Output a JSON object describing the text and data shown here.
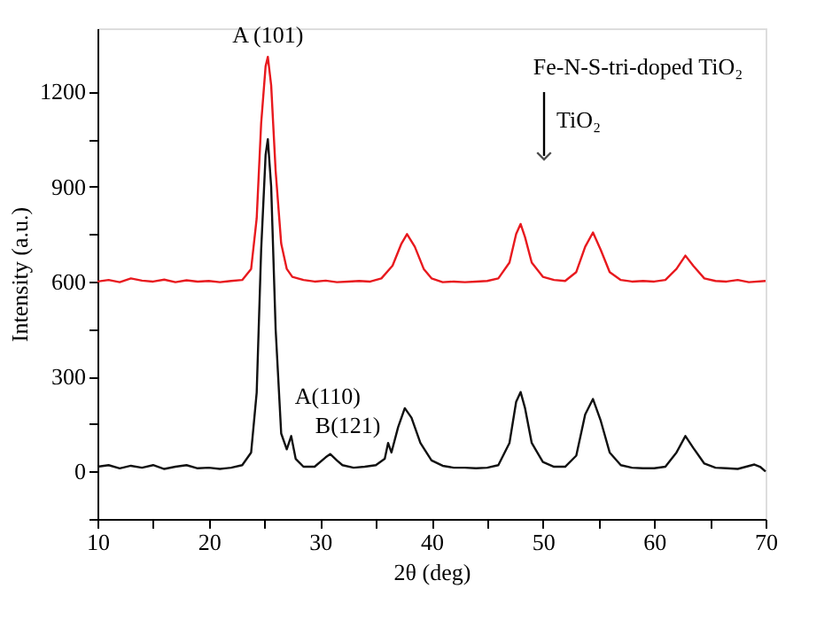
{
  "chart_data": {
    "type": "line",
    "xlabel": "2θ (deg)",
    "ylabel": "Intensity (a.u.)",
    "xlim": [
      10,
      70
    ],
    "ylim": [
      -150,
      1400
    ],
    "xticks": [
      10,
      {
        "value": 15,
        "label": null
      },
      20,
      {
        "value": 25,
        "label": null
      },
      30,
      {
        "value": 35,
        "label": null
      },
      40,
      {
        "value": 45,
        "label": null
      },
      50,
      {
        "value": 55,
        "label": null
      },
      60,
      {
        "value": 65,
        "label": null
      },
      70
    ],
    "yticks": [
      {
        "value": -150,
        "label": null
      },
      0,
      {
        "value": 150,
        "label": null
      },
      300,
      {
        "value": 450,
        "label": null
      },
      600,
      {
        "value": 750,
        "label": null
      },
      900,
      {
        "value": 1050,
        "label": null
      },
      1200
    ],
    "grid": false,
    "marker": "none",
    "line_style": "solid",
    "series": [
      {
        "color": "#e8191e",
        "x": [
          10,
          11,
          12,
          13,
          14,
          15,
          16,
          17,
          18,
          19,
          20,
          21,
          22,
          23,
          23.8,
          24.3,
          24.7,
          25.1,
          25.3,
          25.6,
          26,
          26.5,
          27,
          27.5,
          28.5,
          29.5,
          30.5,
          31.5,
          32.5,
          33.5,
          34.5,
          35.5,
          36.5,
          37.3,
          37.8,
          38.5,
          39.3,
          40,
          41,
          42,
          43,
          44,
          45,
          46,
          47,
          47.6,
          48,
          48.4,
          49,
          50,
          51,
          52,
          53,
          53.8,
          54.5,
          55.2,
          56,
          57,
          58,
          59,
          60,
          61,
          62,
          62.8,
          63.5,
          64.5,
          65.5,
          66.5,
          67.5,
          68.5,
          70
        ],
        "values": [
          600,
          605,
          598,
          610,
          603,
          600,
          606,
          598,
          604,
          600,
          602,
          598,
          602,
          605,
          640,
          800,
          1100,
          1280,
          1310,
          1220,
          950,
          720,
          640,
          615,
          605,
          600,
          603,
          598,
          600,
          602,
          600,
          610,
          650,
          720,
          750,
          710,
          640,
          610,
          598,
          600,
          598,
          600,
          602,
          610,
          660,
          750,
          782,
          740,
          660,
          615,
          605,
          602,
          630,
          710,
          755,
          700,
          630,
          605,
          600,
          602,
          600,
          605,
          640,
          682,
          650,
          610,
          602,
          600,
          605,
          598,
          602
        ]
      },
      {
        "color": "#111111",
        "x": [
          10,
          11,
          12,
          13,
          14,
          15,
          16,
          17,
          18,
          19,
          20,
          21,
          22,
          23,
          23.8,
          24.3,
          24.7,
          25.1,
          25.3,
          25.6,
          26,
          26.5,
          27,
          27.4,
          27.8,
          28.5,
          29.5,
          30.5,
          30.9,
          31.5,
          32,
          33,
          34,
          35,
          35.8,
          36.1,
          36.4,
          37,
          37.6,
          38.2,
          39,
          40,
          41,
          42,
          43,
          44,
          45,
          46,
          47,
          47.6,
          48,
          48.4,
          49,
          50,
          51,
          52,
          53,
          53.8,
          54.5,
          55.2,
          56,
          57,
          58,
          59,
          60,
          61,
          62,
          62.8,
          63.5,
          64.5,
          65.5,
          66.5,
          67.5,
          69,
          69.5,
          70
        ],
        "values": [
          15,
          20,
          10,
          18,
          12,
          20,
          8,
          15,
          20,
          10,
          12,
          8,
          12,
          20,
          60,
          250,
          700,
          1000,
          1050,
          900,
          450,
          120,
          70,
          112,
          40,
          15,
          15,
          45,
          55,
          35,
          20,
          12,
          15,
          20,
          40,
          90,
          60,
          140,
          200,
          170,
          90,
          35,
          18,
          12,
          12,
          10,
          12,
          20,
          90,
          220,
          251,
          200,
          90,
          30,
          15,
          15,
          50,
          180,
          229,
          160,
          60,
          20,
          12,
          10,
          10,
          15,
          60,
          112,
          75,
          25,
          12,
          10,
          8,
          22,
          15,
          0
        ]
      }
    ],
    "annotations": [
      {
        "text": "A (101)",
        "x": 25.3,
        "y": 1310
      },
      {
        "text": "A(110)",
        "x": 27.4,
        "y": 112
      },
      {
        "text": "B(121)",
        "x": 30.9,
        "y": 55
      },
      "Fe-N-S-tri-doped TiO₂",
      "TiO₂"
    ]
  }
}
